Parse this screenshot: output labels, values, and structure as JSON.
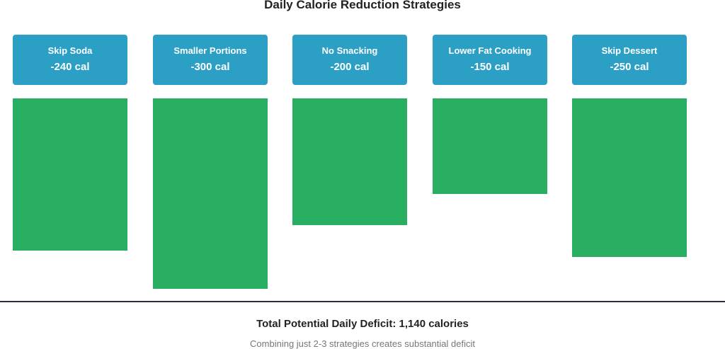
{
  "chart_data": {
    "type": "bar",
    "title": "Daily Calorie Reduction Strategies",
    "categories": [
      "Skip Soda",
      "Smaller Portions",
      "No Snacking",
      "Lower Fat Cooking",
      "Skip Dessert"
    ],
    "values": [
      240,
      300,
      200,
      150,
      250
    ],
    "value_labels": [
      "-240 cal",
      "-300 cal",
      "-200 cal",
      "-150 cal",
      "-250 cal"
    ],
    "colors": {
      "card": "#2b9fc4",
      "bar": "#27ae60"
    }
  },
  "footer": {
    "total": "Total Potential Daily Deficit: 1,140 calories",
    "note": "Combining just 2-3 strategies creates substantial deficit"
  }
}
